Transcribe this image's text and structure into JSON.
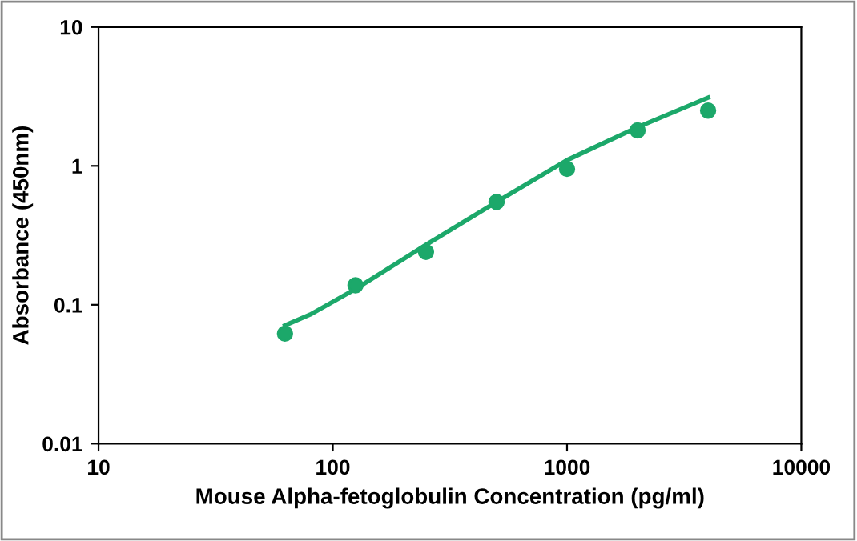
{
  "chart_data": {
    "type": "scatter",
    "xlabel": "Mouse Alpha-fetoglobulin Concentration (pg/ml)",
    "ylabel": "Absorbance (450nm)",
    "log": "xy",
    "grid": false,
    "xlim": [
      10,
      10000
    ],
    "xticks": [
      10,
      100,
      1000,
      10000
    ],
    "ylim": [
      0.01,
      10
    ],
    "yticks": [
      0.01,
      0.1,
      1,
      10
    ],
    "series": [
      {
        "color": "#1ca86a",
        "marker": "circle",
        "x": [
          62.5,
          125,
          250,
          500,
          1000,
          2000,
          4000
        ],
        "values": [
          0.062,
          0.138,
          0.24,
          0.55,
          0.95,
          1.8,
          2.5
        ]
      },
      {
        "type": "line",
        "color": "#1ca86a",
        "marker": "none",
        "line_style": "solid",
        "x": [
          62.5,
          80,
          100,
          125,
          250,
          500,
          1000,
          2000,
          4000
        ],
        "values": [
          0.071,
          0.085,
          0.105,
          0.13,
          0.27,
          0.55,
          1.1,
          1.9,
          3.1
        ]
      }
    ]
  }
}
